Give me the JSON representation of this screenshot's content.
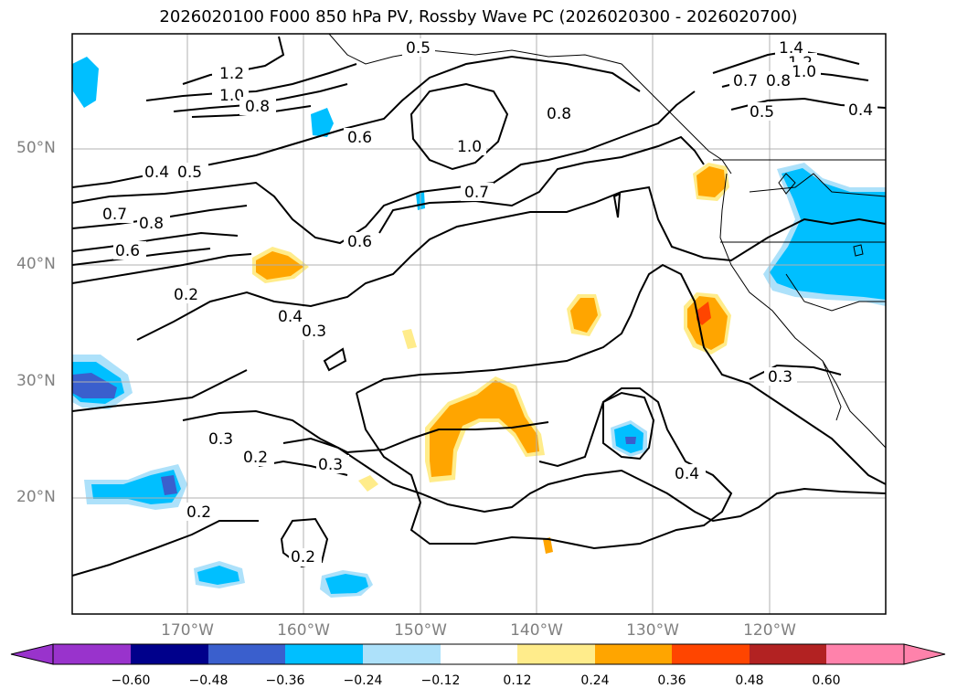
{
  "title": "2026020100 F000 850 hPa PV, Rossby Wave PC (2026020300 - 2026020700)",
  "lat_ticks": [
    "50°N",
    "40°N",
    "30°N",
    "20°N"
  ],
  "lon_ticks": [
    "170°W",
    "160°W",
    "150°W",
    "140°W",
    "130°W",
    "120°W"
  ],
  "contour_labels": [
    "1.4",
    "1.2",
    "1.0",
    "0.8",
    "0.7",
    "0.6",
    "0.5",
    "0.4",
    "0.3",
    "0.2"
  ],
  "colorbar": {
    "ticks": [
      "−0.60",
      "−0.48",
      "−0.36",
      "−0.24",
      "−0.12",
      "0.12",
      "0.24",
      "0.36",
      "0.48",
      "0.60"
    ],
    "colors": [
      "#9933cc",
      "#00008b",
      "#3a5fcd",
      "#00bfff",
      "#ade1fa",
      "#ffffff",
      "#ffec8b",
      "#ffa500",
      "#ff4500",
      "#b22222",
      "#ff82ab"
    ]
  }
}
